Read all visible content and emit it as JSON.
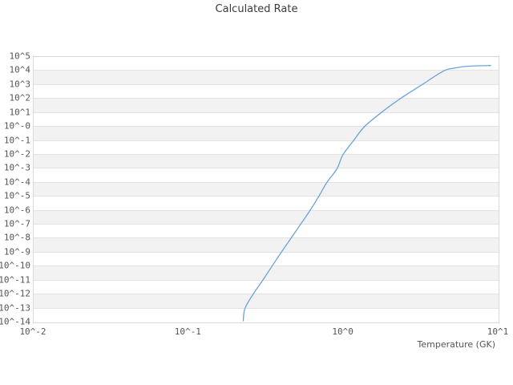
{
  "chart_data": {
    "type": "line",
    "title": "Calculated Rate",
    "xlabel": "Temperature (GK)",
    "ylabel": "",
    "xscale": "log",
    "yscale": "log",
    "xlim": [
      0.01,
      10
    ],
    "ylim": [
      1e-14,
      100000.0
    ],
    "grid": "horizontal-bands",
    "legend": "none",
    "colors": {
      "line": "#69a3dd",
      "band": "#f2f2f2",
      "gridline": "#e3e3e3",
      "plot_border": "#d9d9d9",
      "title_text": "#3b3b3b",
      "tick_text": "#555555"
    },
    "xticks": [
      {
        "label": "10^-2",
        "exp": -2
      },
      {
        "label": "10^-1",
        "exp": -1
      },
      {
        "label": "10^0",
        "exp": 0
      },
      {
        "label": "10^1",
        "exp": 1
      }
    ],
    "yticks": [
      "10^5",
      "10^4",
      "10^3",
      "10^2",
      "10^1",
      "10^-0",
      "10^-1",
      "10^-2",
      "10^-3",
      "10^-4",
      "10^-5",
      "10^-6",
      "10^-7",
      "10^-8",
      "10^-9",
      "10^-10",
      "10^-11",
      "10^-12",
      "10^-13",
      "10^-14"
    ],
    "series": [
      {
        "name": "Calculated Rate",
        "points": [
          [
            0.225,
            1.3e-14
          ],
          [
            0.231,
            1e-13
          ],
          [
            0.26,
            1e-12
          ],
          [
            0.3,
            1e-11
          ],
          [
            0.344,
            1e-10
          ],
          [
            0.395,
            1e-09
          ],
          [
            0.456,
            1e-08
          ],
          [
            0.526,
            1e-07
          ],
          [
            0.606,
            1e-06
          ],
          [
            0.69,
            1e-05
          ],
          [
            0.778,
            0.0001
          ],
          [
            0.906,
            0.001
          ],
          [
            0.99,
            0.01
          ],
          [
            1.157,
            0.1
          ],
          [
            1.36,
            1.0
          ],
          [
            1.74,
            10
          ],
          [
            2.31,
            100
          ],
          [
            3.19,
            1000
          ],
          [
            4.42,
            10000
          ],
          [
            5.2,
            16000
          ],
          [
            6.0,
            20500
          ],
          [
            7.4,
            23300
          ],
          [
            8.9,
            24400
          ]
        ]
      }
    ]
  }
}
